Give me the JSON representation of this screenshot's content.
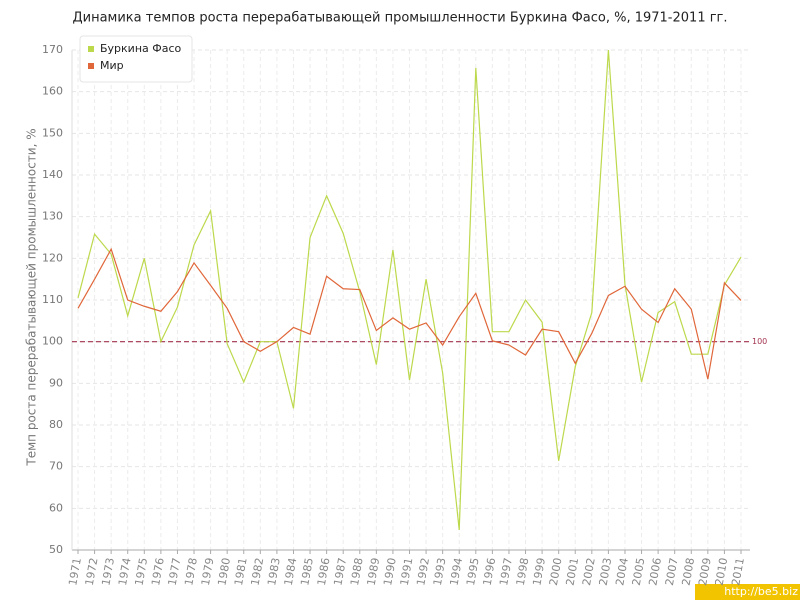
{
  "chart_data": {
    "type": "line",
    "title": "Динамика темпов роста перерабатывающей промышленности Буркина Фасо, %, 1971-2011 гг.",
    "y_label": "Темп роста перерабатывающей промышленности, %",
    "categories": [
      "1971",
      "1972",
      "1973",
      "1974",
      "1975",
      "1976",
      "1977",
      "1978",
      "1979",
      "1980",
      "1981",
      "1982",
      "1983",
      "1984",
      "1985",
      "1986",
      "1987",
      "1988",
      "1989",
      "1990",
      "1991",
      "1992",
      "1993",
      "1994",
      "1995",
      "1996",
      "1997",
      "1998",
      "1999",
      "2000",
      "2001",
      "2002",
      "2003",
      "2004",
      "2005",
      "2006",
      "2007",
      "2008",
      "2009",
      "2010",
      "2011"
    ],
    "series": [
      {
        "name": "Буркина Фасо",
        "color": "#bcd94c",
        "values": [
          110.5,
          125.8,
          121,
          106.2,
          120,
          100,
          108.3,
          123.2,
          131.4,
          99.5,
          90.3,
          100,
          100,
          84,
          125,
          135,
          126,
          112,
          94.5,
          122,
          90.8,
          115,
          92.5,
          54.8,
          165.7,
          102.4,
          102.4,
          110,
          104.7,
          71.4,
          94,
          107,
          170,
          113.7,
          90.3,
          107,
          109.6,
          97,
          97,
          113.6,
          120.3
        ]
      },
      {
        "name": "Мир",
        "color": "#e0673a",
        "values": [
          108,
          115,
          122.2,
          110,
          108.5,
          107.3,
          112,
          118.9,
          113.5,
          108,
          100,
          97.7,
          100,
          103.4,
          101.8,
          115.7,
          112.7,
          112.5,
          102.7,
          105.7,
          103,
          104.5,
          99.2,
          106,
          111.6,
          100.2,
          99.2,
          96.8,
          103,
          102.4,
          94.8,
          102,
          111.1,
          113.3,
          107.8,
          104.6,
          112.7,
          107.8,
          91,
          114.1,
          109.9
        ]
      }
    ],
    "ylim": [
      50,
      170
    ],
    "yticks": [
      50,
      60,
      70,
      80,
      90,
      100,
      110,
      120,
      130,
      140,
      150,
      160,
      170
    ],
    "grid": true,
    "reference_line": 100,
    "reference_color": "#a3334f",
    "legend": "top-left",
    "watermark": "http://be5.biz"
  }
}
